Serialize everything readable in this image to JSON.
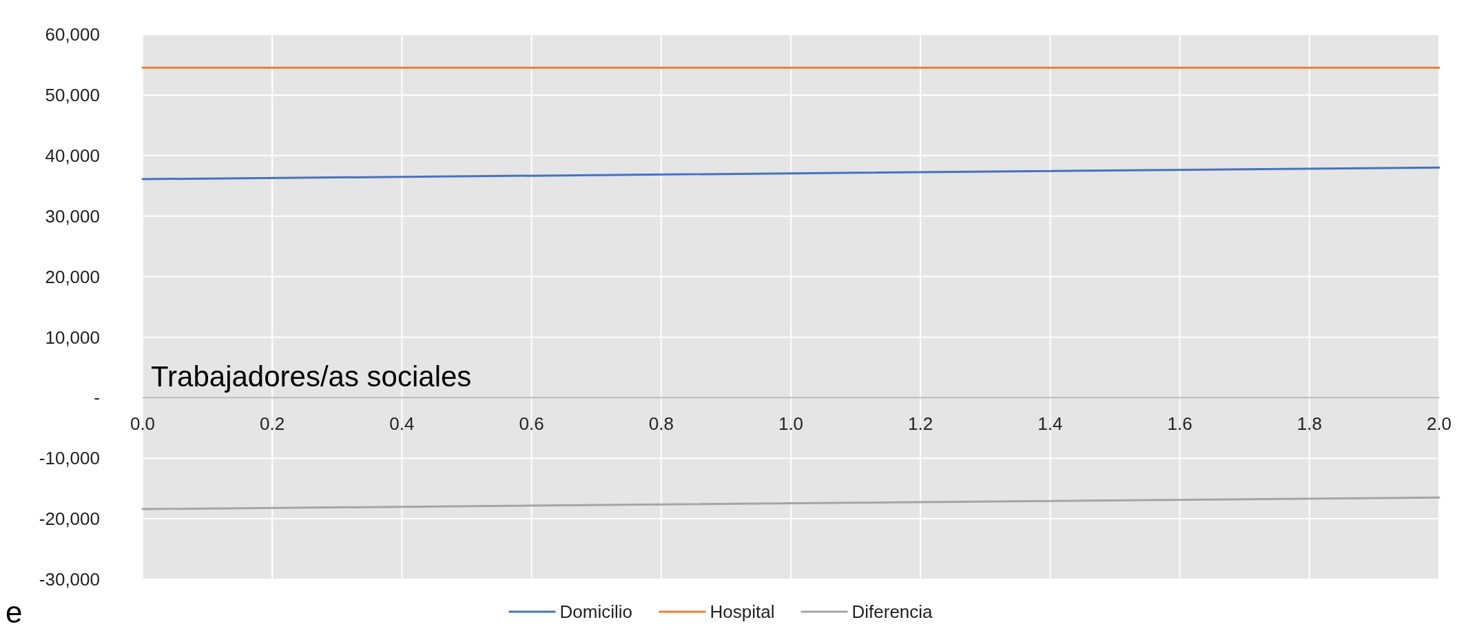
{
  "chart_data": {
    "type": "line",
    "x": [
      0,
      2
    ],
    "series": [
      {
        "name": "Domicilio",
        "color": "#4472c4",
        "values": [
          36100,
          38000
        ]
      },
      {
        "name": "Hospital",
        "color": "#ed7d31",
        "values": [
          54500,
          54500
        ]
      },
      {
        "name": "Diferencia",
        "color": "#a5a5a5",
        "values": [
          -18400,
          -16500
        ]
      }
    ],
    "xlim": [
      0,
      2
    ],
    "xticks": [
      {
        "value": 0,
        "label": "0.0"
      },
      0.2,
      0.4,
      0.6,
      0.8,
      {
        "value": 1,
        "label": "1.0"
      },
      1.2,
      1.4,
      1.6,
      1.8,
      {
        "value": 2,
        "label": "2.0"
      }
    ],
    "ylim": [
      -30000,
      60000
    ],
    "yticks": [
      {
        "value": -30000,
        "label": "-30,000"
      },
      {
        "value": -20000,
        "label": "-20,000"
      },
      {
        "value": -10000,
        "label": "-10,000"
      },
      {
        "value": 0,
        "label": "-"
      },
      {
        "value": 10000,
        "label": "10,000"
      },
      {
        "value": 20000,
        "label": "20,000"
      },
      {
        "value": 30000,
        "label": "30,000"
      },
      {
        "value": 40000,
        "label": "40,000"
      },
      {
        "value": 50000,
        "label": "50,000"
      },
      {
        "value": 60000,
        "label": "60,000"
      }
    ],
    "annotations": [
      "Trabajadores/as sociales",
      "e"
    ],
    "grid": true,
    "legend": "bottom",
    "line_style": "solid",
    "marker": "none"
  }
}
